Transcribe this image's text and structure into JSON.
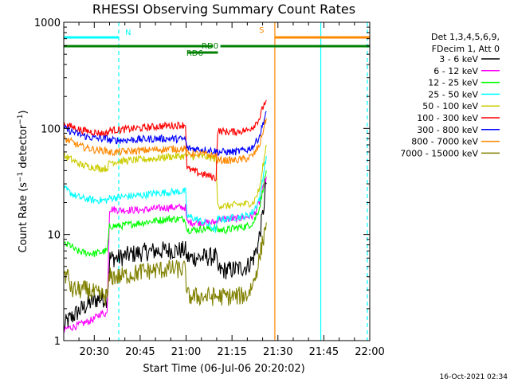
{
  "chart_data": {
    "type": "line",
    "title": "RHESSI Observing Summary Count Rates",
    "xlabel": "Start Time (06-Jul-06 20:20:02)",
    "ylabel": "Count Rate (s⁻¹ detector⁻¹)",
    "ylabel_parts": {
      "pre": "Count Rate (s",
      "sup1": "−1",
      "mid": " detector",
      "sup2": "−1",
      "post": ")"
    },
    "y_scale": "log",
    "ylim": [
      1,
      1000
    ],
    "xlim_minutes": [
      20.33,
      22.0
    ],
    "x_ticks": [
      {
        "label": "20:30",
        "t": 30
      },
      {
        "label": "20:45",
        "t": 45
      },
      {
        "label": "21:00",
        "t": 60
      },
      {
        "label": "21:15",
        "t": 75
      },
      {
        "label": "21:30",
        "t": 90
      },
      {
        "label": "21:45",
        "t": 105
      },
      {
        "label": "22:00",
        "t": 120
      }
    ],
    "y_ticks": [
      {
        "label": "1",
        "v": 1
      },
      {
        "label": "10",
        "v": 10
      },
      {
        "label": "100",
        "v": 100
      },
      {
        "label": "1000",
        "v": 1000
      }
    ],
    "x_range_min": [
      20.03,
      120
    ],
    "legend_header": [
      "Det 1,3,4,5,6,9,",
      "FDecim 1, Att 0"
    ],
    "legend_placement": "right",
    "series": [
      {
        "name": "3 - 6 keV",
        "color": "#000000",
        "points": [
          [
            20.03,
            1.3
          ],
          [
            21,
            1.5
          ],
          [
            24,
            1.8
          ],
          [
            26,
            2
          ],
          [
            28,
            2.2
          ],
          [
            30,
            2.4
          ],
          [
            32,
            2.5
          ],
          [
            33,
            2.5
          ],
          [
            34.2,
            2.5
          ],
          [
            35.1,
            6
          ],
          [
            38,
            6
          ],
          [
            42,
            6.5
          ],
          [
            46,
            6.8
          ],
          [
            50,
            7
          ],
          [
            54,
            7.1
          ],
          [
            59.8,
            7.1
          ],
          [
            60.3,
            6
          ],
          [
            66,
            6.1
          ],
          [
            69.8,
            6.2
          ],
          [
            70.3,
            4.6
          ],
          [
            73,
            4.6
          ],
          [
            76,
            4.7
          ],
          [
            80,
            5
          ],
          [
            82,
            6
          ],
          [
            83.5,
            8
          ],
          [
            85,
            15
          ],
          [
            86.2,
            30
          ]
        ]
      },
      {
        "name": "6 - 12 keV",
        "color": "#ff00ff",
        "points": [
          [
            20.03,
            1.2
          ],
          [
            21,
            1.3
          ],
          [
            25,
            1.4
          ],
          [
            30,
            1.6
          ],
          [
            32,
            1.8
          ],
          [
            34.2,
            1.8
          ],
          [
            35,
            17.5
          ],
          [
            38,
            17
          ],
          [
            42,
            17
          ],
          [
            46,
            17
          ],
          [
            50,
            17.5
          ],
          [
            54,
            18
          ],
          [
            59.8,
            18
          ],
          [
            60.3,
            13
          ],
          [
            66,
            13
          ],
          [
            69.8,
            13
          ],
          [
            70.3,
            14
          ],
          [
            73,
            14
          ],
          [
            76,
            14
          ],
          [
            79,
            14.5
          ],
          [
            82,
            15
          ],
          [
            84,
            20
          ],
          [
            86.2,
            35
          ]
        ]
      },
      {
        "name": "12 - 25 keV",
        "color": "#00ff00",
        "points": [
          [
            20.03,
            8
          ],
          [
            22,
            8
          ],
          [
            24,
            7
          ],
          [
            26,
            6.8
          ],
          [
            28,
            6.7
          ],
          [
            30,
            6.6
          ],
          [
            32,
            6.8
          ],
          [
            34.2,
            7
          ],
          [
            35,
            12
          ],
          [
            38,
            12
          ],
          [
            42,
            12.5
          ],
          [
            46,
            13
          ],
          [
            50,
            13.5
          ],
          [
            54,
            14
          ],
          [
            59.8,
            14
          ],
          [
            60.3,
            11
          ],
          [
            66,
            11.3
          ],
          [
            69.8,
            11.5
          ],
          [
            70.3,
            11
          ],
          [
            73,
            11
          ],
          [
            76,
            11.5
          ],
          [
            80,
            12
          ],
          [
            82,
            13
          ],
          [
            84,
            18
          ],
          [
            86.2,
            40
          ]
        ]
      },
      {
        "name": "25 - 50 keV",
        "color": "#00ffff",
        "points": [
          [
            20.03,
            27
          ],
          [
            22,
            25
          ],
          [
            24,
            23
          ],
          [
            26,
            22
          ],
          [
            28,
            21.5
          ],
          [
            30,
            21
          ],
          [
            32,
            21
          ],
          [
            34.2,
            21
          ],
          [
            35,
            22
          ],
          [
            38,
            22.5
          ],
          [
            42,
            23
          ],
          [
            46,
            23.5
          ],
          [
            50,
            24.5
          ],
          [
            54,
            25
          ],
          [
            59.8,
            25.5
          ],
          [
            60.3,
            15
          ],
          [
            66,
            13
          ],
          [
            69.8,
            11
          ],
          [
            70.3,
            14
          ],
          [
            73,
            14
          ],
          [
            76,
            14.5
          ],
          [
            80,
            15
          ],
          [
            82,
            16.5
          ],
          [
            84,
            22
          ],
          [
            86.2,
            55
          ]
        ]
      },
      {
        "name": "50 - 100 keV",
        "color": "#cccc00",
        "points": [
          [
            20.03,
            55
          ],
          [
            22,
            52
          ],
          [
            24,
            48
          ],
          [
            26,
            45
          ],
          [
            28,
            44
          ],
          [
            30,
            43
          ],
          [
            32,
            42
          ],
          [
            34.2,
            42
          ],
          [
            35,
            48
          ],
          [
            38,
            49
          ],
          [
            42,
            50
          ],
          [
            46,
            51
          ],
          [
            50,
            52
          ],
          [
            54,
            54
          ],
          [
            59.8,
            55
          ],
          [
            60.3,
            55
          ],
          [
            66,
            54
          ],
          [
            69.8,
            52
          ],
          [
            70.3,
            19
          ],
          [
            73,
            18.5
          ],
          [
            76,
            19
          ],
          [
            80,
            19.5
          ],
          [
            82,
            20
          ],
          [
            84,
            27
          ],
          [
            86.2,
            70
          ]
        ]
      },
      {
        "name": "100 - 300 keV",
        "color": "#ff0000",
        "points": [
          [
            20.03,
            110
          ],
          [
            22,
            105
          ],
          [
            24,
            100
          ],
          [
            26,
            96
          ],
          [
            28,
            94
          ],
          [
            30,
            92
          ],
          [
            32,
            90
          ],
          [
            34.2,
            90
          ],
          [
            35,
            96
          ],
          [
            38,
            97
          ],
          [
            42,
            99
          ],
          [
            46,
            101
          ],
          [
            50,
            104
          ],
          [
            54,
            106
          ],
          [
            59.8,
            108
          ],
          [
            60.3,
            42
          ],
          [
            64,
            38
          ],
          [
            67,
            36
          ],
          [
            69.8,
            34
          ],
          [
            70.3,
            95
          ],
          [
            73,
            93
          ],
          [
            76,
            93
          ],
          [
            80,
            96
          ],
          [
            82,
            105
          ],
          [
            84,
            125
          ],
          [
            85.3,
            165
          ],
          [
            86.2,
            185
          ]
        ]
      },
      {
        "name": "300 - 800 keV",
        "color": "#0000ff",
        "points": [
          [
            20.03,
            100
          ],
          [
            22,
            95
          ],
          [
            24,
            90
          ],
          [
            26,
            86
          ],
          [
            28,
            83
          ],
          [
            30,
            81
          ],
          [
            32,
            80
          ],
          [
            34.2,
            80
          ],
          [
            35,
            77
          ],
          [
            38,
            77.5
          ],
          [
            42,
            78
          ],
          [
            46,
            79
          ],
          [
            50,
            80
          ],
          [
            54,
            80
          ],
          [
            59.8,
            79
          ],
          [
            60.3,
            65
          ],
          [
            66,
            63
          ],
          [
            69.8,
            61
          ],
          [
            70.3,
            60
          ],
          [
            73,
            60
          ],
          [
            76,
            60
          ],
          [
            80,
            63
          ],
          [
            82,
            68
          ],
          [
            84,
            85
          ],
          [
            86.2,
            145
          ]
        ]
      },
      {
        "name": "800 - 7000 keV",
        "color": "#ff8800",
        "points": [
          [
            20.03,
            80
          ],
          [
            22,
            76
          ],
          [
            24,
            71
          ],
          [
            26,
            67
          ],
          [
            28,
            65
          ],
          [
            30,
            63
          ],
          [
            32,
            62
          ],
          [
            34.2,
            62
          ],
          [
            35,
            59
          ],
          [
            38,
            60
          ],
          [
            42,
            61
          ],
          [
            46,
            62
          ],
          [
            50,
            63
          ],
          [
            54,
            64
          ],
          [
            59.8,
            64
          ],
          [
            60.3,
            58
          ],
          [
            66,
            57
          ],
          [
            69.8,
            55
          ],
          [
            70.3,
            50
          ],
          [
            73,
            50
          ],
          [
            76,
            50
          ],
          [
            80,
            52
          ],
          [
            82,
            56
          ],
          [
            84,
            70
          ],
          [
            86.2,
            125
          ]
        ]
      },
      {
        "name": "7000 - 15000 keV",
        "color": "#808000",
        "points": [
          [
            20.03,
            4.2
          ],
          [
            21.5,
            4
          ],
          [
            22.5,
            3
          ],
          [
            25,
            3
          ],
          [
            28,
            3
          ],
          [
            31,
            2.7
          ],
          [
            34.2,
            2.6
          ],
          [
            35,
            4
          ],
          [
            38,
            4
          ],
          [
            42,
            4.2
          ],
          [
            46,
            4.5
          ],
          [
            50,
            4.6
          ],
          [
            54,
            4.7
          ],
          [
            59.8,
            4.7
          ],
          [
            60.3,
            2.6
          ],
          [
            66,
            2.6
          ],
          [
            69.8,
            2.6
          ],
          [
            70.3,
            2.6
          ],
          [
            73,
            2.6
          ],
          [
            76,
            2.6
          ],
          [
            80,
            2.7
          ],
          [
            82,
            3.5
          ],
          [
            84,
            6
          ],
          [
            86.2,
            13
          ]
        ]
      }
    ],
    "annotations": [
      {
        "label": "N",
        "color": "#00ffff",
        "t": 38,
        "level": 0
      },
      {
        "label": "S",
        "color": "#ff8800",
        "t": 87.5,
        "level": 0
      },
      {
        "label": "RD0",
        "color": "#008000",
        "t": 63,
        "level": 1
      },
      {
        "label": "RD6",
        "color": "#008000",
        "t": 58,
        "level": 2
      }
    ],
    "bars": [
      {
        "name": "N-flag",
        "color": "#00ffff",
        "level": 0,
        "segments": [
          [
            20.03,
            37.9
          ],
          [
            104,
            120
          ]
        ]
      },
      {
        "name": "S-flag",
        "color": "#ff8800",
        "level": 0,
        "segments": [
          [
            89,
            120
          ]
        ]
      },
      {
        "name": "RD0",
        "color": "#008000",
        "level": 1,
        "segments": [
          [
            20.03,
            68.8
          ],
          [
            71.2,
            120
          ]
        ]
      },
      {
        "name": "RD6",
        "color": "#008000",
        "level": 2,
        "segments": [
          [
            60.5,
            70.4
          ]
        ]
      }
    ],
    "event_lines": [
      {
        "name": "night-start",
        "color": "#00ffff",
        "t": 38,
        "style": "dashed"
      },
      {
        "name": "saa-start",
        "color": "#ff8800",
        "t": 89,
        "style": "solid"
      },
      {
        "name": "saa-end",
        "color": "#00ffff",
        "t": 104,
        "style": "solid"
      },
      {
        "name": "right-edge",
        "color": "#00ffff",
        "t": 119.2,
        "style": "dashed"
      }
    ],
    "grid": false
  },
  "footer": {
    "timestamp": "16-Oct-2021 02:34"
  }
}
